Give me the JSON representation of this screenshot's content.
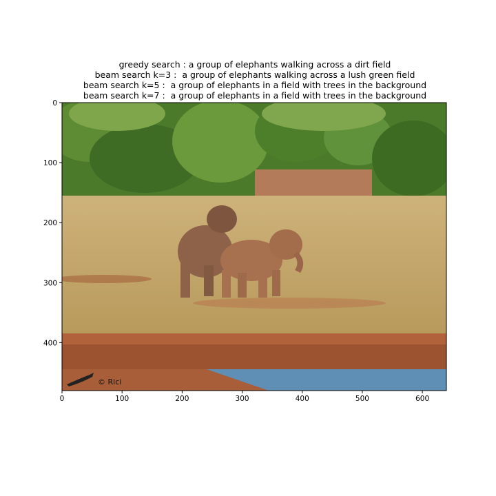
{
  "title_lines": [
    "greedy search : a group of elephants walking across a dirt field",
    "beam search k=3 :  a group of elephants walking across a lush green field",
    "beam search k=5 :  a group of elephants in a field with trees in the background",
    "beam search k=7 :  a group of elephants in a field with trees in the background"
  ],
  "image": {
    "watermark": "© Rici",
    "x_range": [
      0,
      640
    ],
    "y_range": [
      0,
      480
    ],
    "x_ticks": [
      0,
      100,
      200,
      300,
      400,
      500,
      600
    ],
    "y_ticks": [
      0,
      100,
      200,
      300,
      400
    ]
  },
  "colors": {
    "bush": "#4f7d2c",
    "bush_light": "#7ea34a",
    "field": "#c8aa6e",
    "dirt": "#b9683f",
    "water": "#5f8fb5",
    "elephant": "#9a6a4c"
  }
}
